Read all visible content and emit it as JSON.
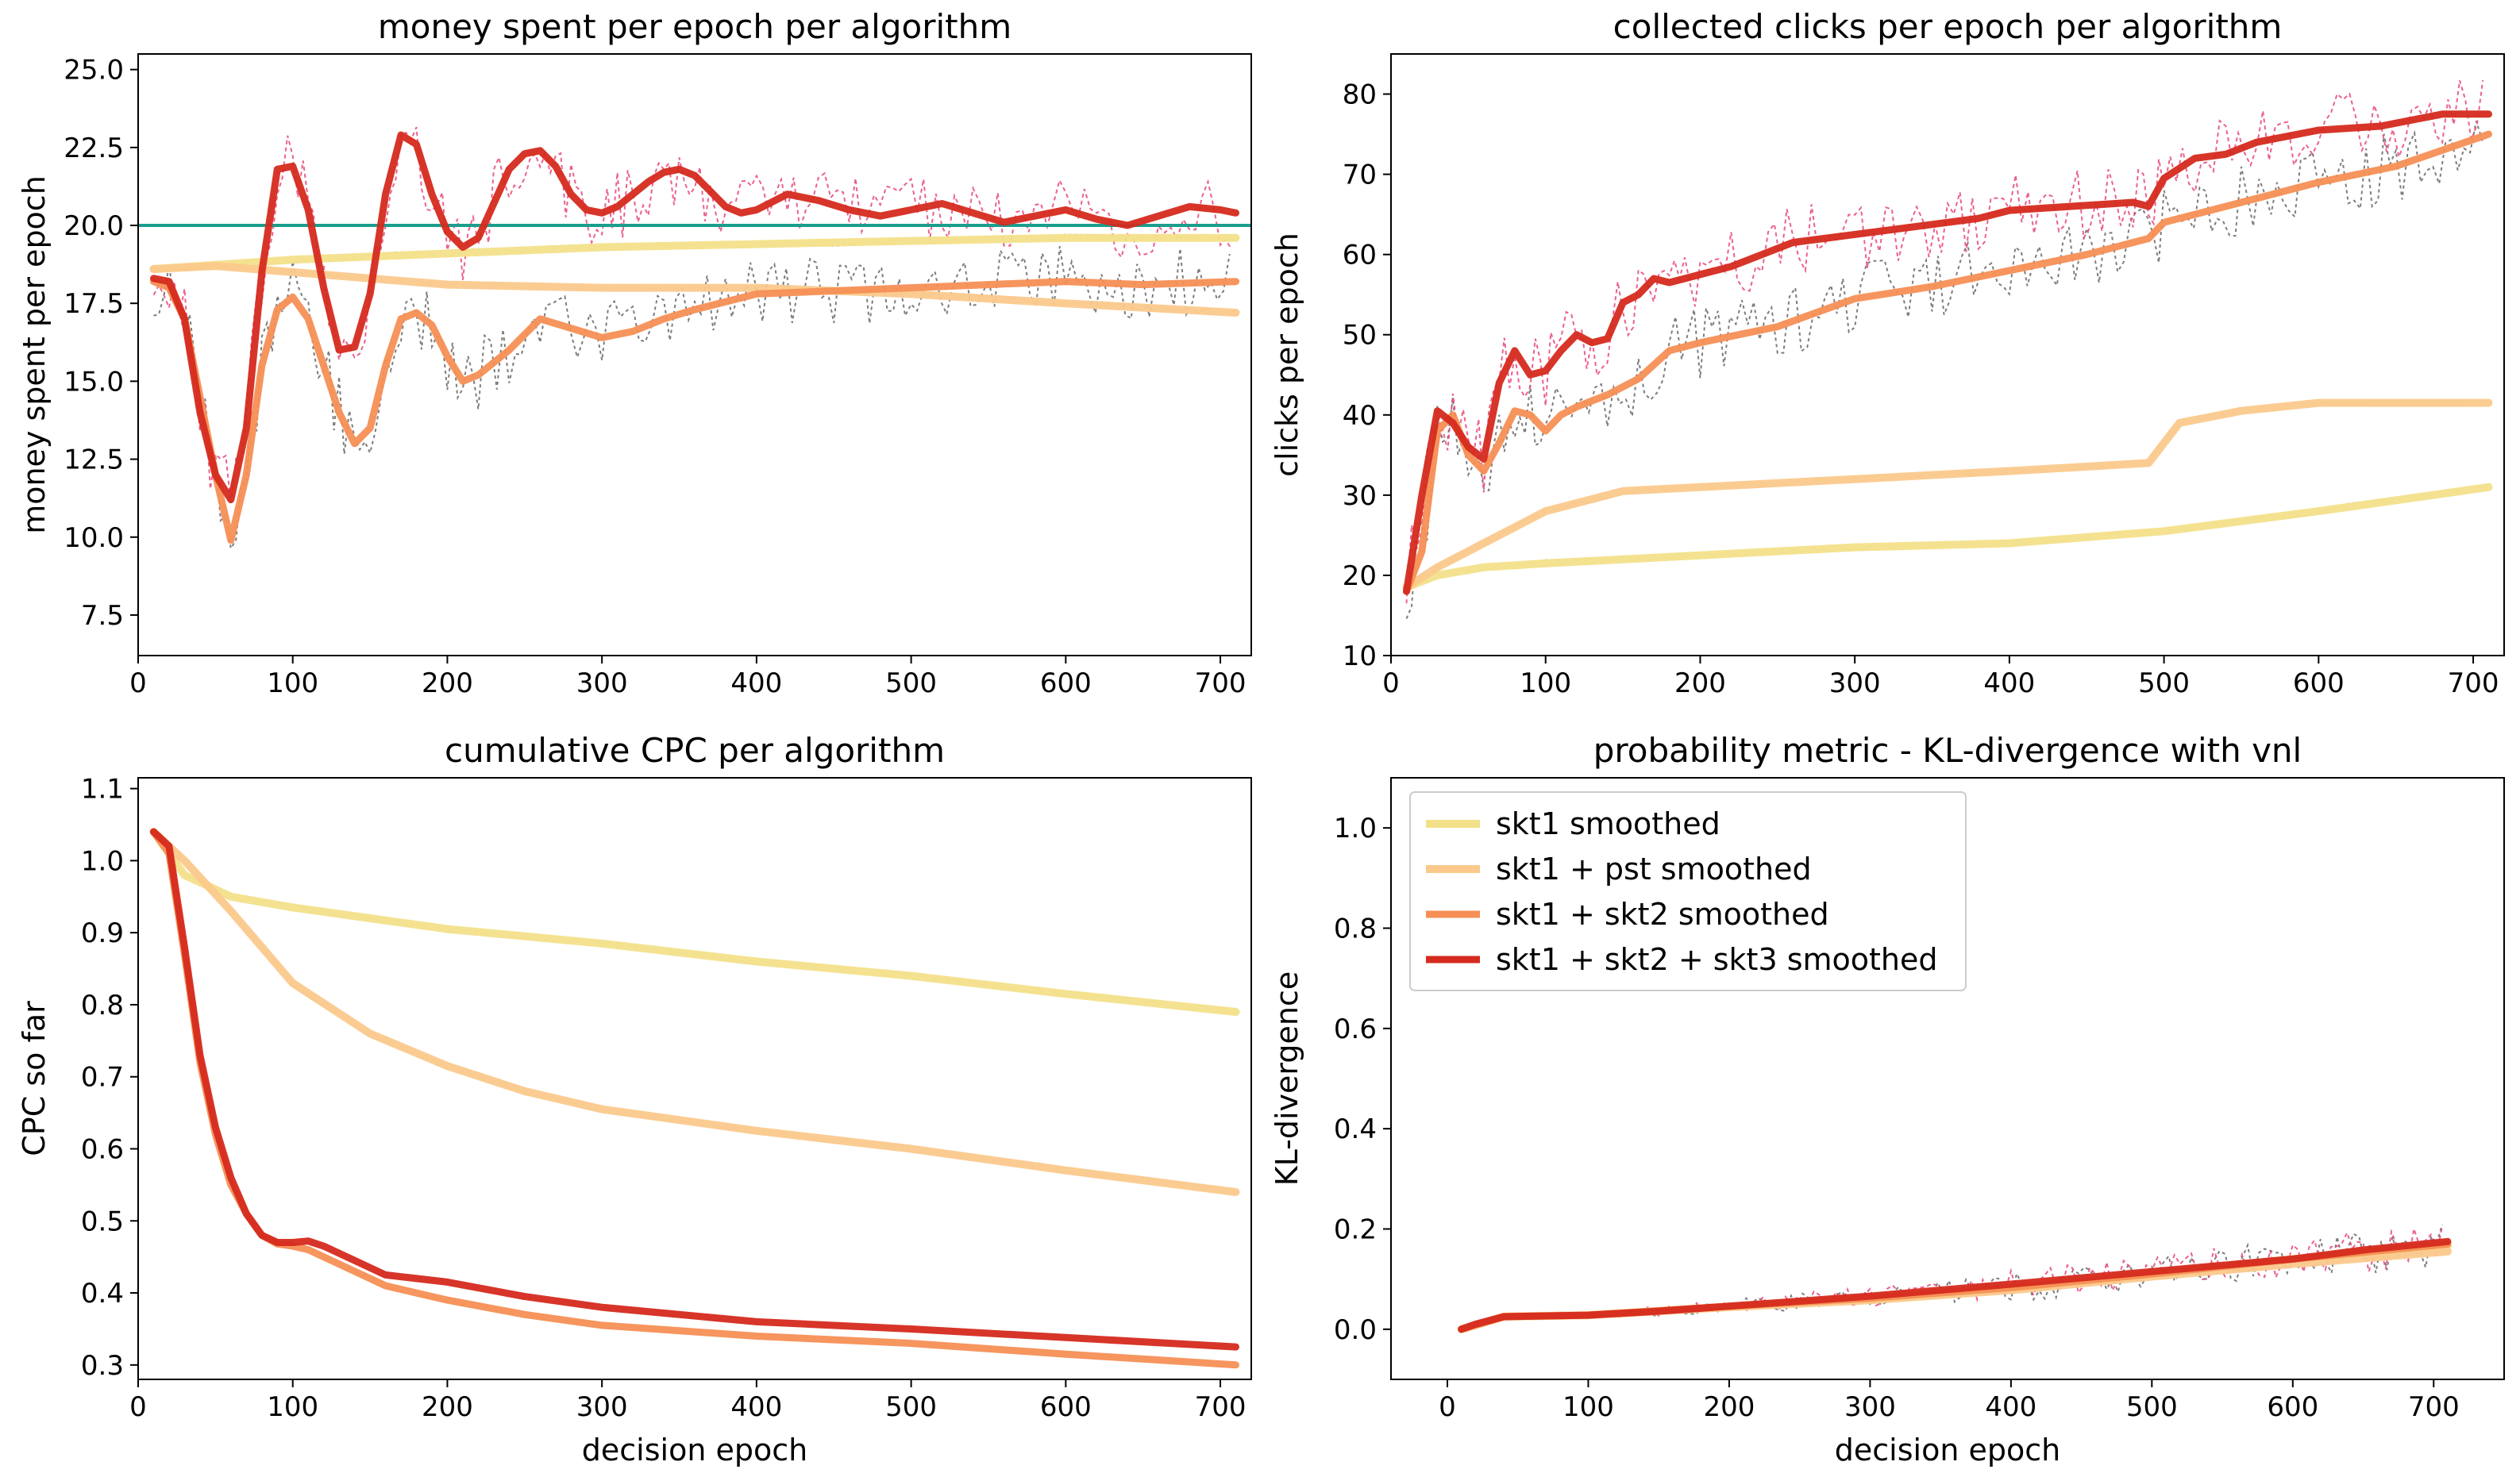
{
  "colors": {
    "skt1": "#f3e08a",
    "skt1_pst": "#fbc98c",
    "skt1_skt2": "#f58f55",
    "skt1_skt2_skt3": "#d52a1e",
    "budget_line": "#1a9e8f",
    "raw_dark": "#666666",
    "raw_pink": "#e8457a"
  },
  "legend": {
    "entries": [
      "skt1 smoothed",
      "skt1 + pst smoothed",
      "skt1 + skt2 smoothed",
      "skt1 + skt2 + skt3 smoothed"
    ]
  },
  "chart_data": [
    {
      "type": "line",
      "title": "money spent per epoch per algorithm",
      "xlabel": "",
      "ylabel": "money spent per epoch",
      "xlim": [
        0,
        720
      ],
      "ylim": [
        6.2,
        25.5
      ],
      "xticks": [
        0,
        100,
        200,
        300,
        400,
        500,
        600,
        700
      ],
      "yticks": [
        7.5,
        10.0,
        12.5,
        15.0,
        17.5,
        20.0,
        22.5,
        25.0
      ],
      "hline": 20,
      "series": [
        {
          "name": "skt1 smoothed",
          "x": [
            10,
            100,
            200,
            300,
            400,
            500,
            600,
            710
          ],
          "y": [
            18.6,
            18.9,
            19.1,
            19.3,
            19.4,
            19.5,
            19.6,
            19.6
          ]
        },
        {
          "name": "skt1 + pst smoothed",
          "x": [
            10,
            50,
            100,
            150,
            200,
            300,
            400,
            500,
            600,
            710
          ],
          "y": [
            18.6,
            18.7,
            18.5,
            18.3,
            18.1,
            18.0,
            18.0,
            17.8,
            17.5,
            17.2
          ]
        },
        {
          "name": "skt1 + skt2 smoothed",
          "x": [
            10,
            20,
            30,
            40,
            50,
            60,
            70,
            80,
            90,
            100,
            110,
            120,
            130,
            140,
            150,
            160,
            170,
            180,
            190,
            200,
            210,
            220,
            240,
            260,
            280,
            300,
            320,
            340,
            360,
            400,
            450,
            500,
            550,
            600,
            650,
            710
          ],
          "y": [
            18.2,
            18.0,
            17.0,
            14.5,
            12.0,
            9.9,
            12.0,
            15.5,
            17.3,
            17.7,
            17.0,
            15.5,
            14.0,
            13.0,
            13.5,
            15.5,
            17.0,
            17.2,
            16.8,
            15.8,
            15.0,
            15.2,
            16.0,
            17.0,
            16.7,
            16.4,
            16.6,
            17.0,
            17.3,
            17.8,
            17.9,
            18.0,
            18.1,
            18.2,
            18.1,
            18.2
          ]
        },
        {
          "name": "skt1 + skt2 + skt3 smoothed",
          "x": [
            10,
            20,
            30,
            40,
            50,
            60,
            70,
            80,
            90,
            100,
            110,
            120,
            130,
            140,
            150,
            160,
            170,
            180,
            190,
            200,
            210,
            220,
            230,
            240,
            250,
            260,
            270,
            280,
            290,
            300,
            310,
            320,
            330,
            340,
            350,
            360,
            370,
            380,
            390,
            400,
            420,
            440,
            460,
            480,
            500,
            520,
            540,
            560,
            580,
            600,
            620,
            640,
            660,
            680,
            700,
            710
          ],
          "y": [
            18.3,
            18.2,
            17.0,
            14.0,
            12.0,
            11.2,
            13.5,
            18.5,
            21.8,
            21.9,
            20.5,
            18.0,
            16.0,
            16.1,
            17.8,
            21.0,
            22.9,
            22.6,
            21.0,
            19.8,
            19.3,
            19.6,
            20.7,
            21.8,
            22.3,
            22.4,
            21.9,
            21.0,
            20.5,
            20.4,
            20.6,
            21.0,
            21.4,
            21.7,
            21.8,
            21.6,
            21.1,
            20.6,
            20.4,
            20.5,
            21.0,
            20.8,
            20.5,
            20.3,
            20.5,
            20.7,
            20.4,
            20.1,
            20.3,
            20.5,
            20.2,
            20.0,
            20.3,
            20.6,
            20.5,
            20.4
          ]
        }
      ]
    },
    {
      "type": "line",
      "title": "collected clicks per epoch per algorithm",
      "xlabel": "",
      "ylabel": "clicks per epoch",
      "xlim": [
        0,
        720
      ],
      "ylim": [
        10,
        85
      ],
      "xticks": [
        0,
        100,
        200,
        300,
        400,
        500,
        600,
        700
      ],
      "yticks": [
        10,
        20,
        30,
        40,
        50,
        60,
        70,
        80
      ],
      "series": [
        {
          "name": "skt1 smoothed",
          "x": [
            10,
            30,
            60,
            100,
            200,
            300,
            400,
            500,
            600,
            710
          ],
          "y": [
            18.5,
            20.0,
            21.0,
            21.5,
            22.5,
            23.5,
            24.0,
            25.5,
            28.0,
            31.0
          ]
        },
        {
          "name": "skt1 + pst smoothed",
          "x": [
            10,
            30,
            60,
            100,
            150,
            200,
            300,
            400,
            490,
            510,
            550,
            600,
            710
          ],
          "y": [
            18.5,
            21.0,
            24.0,
            28.0,
            30.5,
            31.0,
            32.0,
            33.0,
            34.0,
            39.0,
            40.5,
            41.5,
            41.5
          ]
        },
        {
          "name": "skt1 + skt2 smoothed",
          "x": [
            10,
            20,
            30,
            40,
            50,
            60,
            70,
            80,
            90,
            100,
            110,
            120,
            140,
            160,
            180,
            200,
            250,
            300,
            350,
            400,
            450,
            490,
            500,
            550,
            600,
            650,
            710
          ],
          "y": [
            18.0,
            23.0,
            38.0,
            40.0,
            35.0,
            33.0,
            36.5,
            40.5,
            40.0,
            38.0,
            40.0,
            41.0,
            42.5,
            44.5,
            48.0,
            49.0,
            51.0,
            54.5,
            56.0,
            58.0,
            60.0,
            62.0,
            64.0,
            66.5,
            69.0,
            71.0,
            75.0
          ]
        },
        {
          "name": "skt1 + skt2 + skt3 smoothed",
          "x": [
            10,
            20,
            30,
            40,
            50,
            60,
            70,
            80,
            90,
            100,
            110,
            120,
            130,
            140,
            150,
            160,
            170,
            180,
            190,
            200,
            220,
            240,
            260,
            280,
            300,
            340,
            380,
            400,
            440,
            480,
            490,
            500,
            520,
            540,
            560,
            600,
            640,
            680,
            710
          ],
          "y": [
            18.0,
            30.0,
            40.5,
            39.0,
            36.0,
            34.5,
            44.0,
            48.0,
            45.0,
            45.5,
            48.0,
            50.0,
            49.0,
            49.5,
            54.0,
            55.0,
            57.0,
            56.5,
            57.0,
            57.5,
            58.5,
            60.0,
            61.5,
            62.0,
            62.5,
            63.5,
            64.5,
            65.5,
            66.0,
            66.5,
            66.0,
            69.5,
            72.0,
            72.5,
            74.0,
            75.5,
            76.0,
            77.5,
            77.5
          ]
        }
      ]
    },
    {
      "type": "line",
      "title": "cumulative CPC per algorithm",
      "xlabel": "decision epoch",
      "ylabel": "CPC so far",
      "xlim": [
        0,
        720
      ],
      "ylim": [
        0.28,
        1.115
      ],
      "xticks": [
        0,
        100,
        200,
        300,
        400,
        500,
        600,
        700
      ],
      "yticks": [
        0.3,
        0.4,
        0.5,
        0.6,
        0.7,
        0.8,
        0.9,
        1.0,
        1.1
      ],
      "series": [
        {
          "name": "skt1 smoothed",
          "x": [
            10,
            30,
            60,
            100,
            150,
            200,
            300,
            400,
            500,
            600,
            710
          ],
          "y": [
            1.04,
            0.98,
            0.95,
            0.935,
            0.92,
            0.905,
            0.885,
            0.86,
            0.84,
            0.815,
            0.79
          ]
        },
        {
          "name": "skt1 + pst smoothed",
          "x": [
            10,
            30,
            60,
            100,
            150,
            200,
            250,
            300,
            400,
            500,
            600,
            710
          ],
          "y": [
            1.04,
            1.0,
            0.93,
            0.83,
            0.76,
            0.715,
            0.68,
            0.655,
            0.625,
            0.6,
            0.57,
            0.54
          ]
        },
        {
          "name": "skt1 + skt2 smoothed",
          "x": [
            10,
            20,
            30,
            40,
            50,
            60,
            70,
            80,
            90,
            100,
            110,
            120,
            140,
            160,
            180,
            200,
            250,
            300,
            400,
            500,
            600,
            710
          ],
          "y": [
            1.04,
            1.01,
            0.87,
            0.72,
            0.62,
            0.55,
            0.51,
            0.48,
            0.468,
            0.465,
            0.46,
            0.45,
            0.43,
            0.41,
            0.4,
            0.39,
            0.37,
            0.355,
            0.34,
            0.33,
            0.315,
            0.3
          ]
        },
        {
          "name": "skt1 + skt2 + skt3 smoothed",
          "x": [
            10,
            20,
            30,
            40,
            50,
            60,
            70,
            80,
            90,
            100,
            110,
            120,
            140,
            160,
            180,
            200,
            250,
            300,
            400,
            500,
            600,
            710
          ],
          "y": [
            1.04,
            1.02,
            0.88,
            0.73,
            0.63,
            0.56,
            0.51,
            0.48,
            0.47,
            0.47,
            0.472,
            0.465,
            0.445,
            0.425,
            0.42,
            0.415,
            0.395,
            0.38,
            0.36,
            0.35,
            0.338,
            0.325
          ]
        }
      ]
    },
    {
      "type": "line",
      "title": "probability metric - KL-divergence with vnl",
      "xlabel": "decision epoch",
      "ylabel": "KL-divergence",
      "xlim": [
        -40,
        750
      ],
      "ylim": [
        -0.1,
        1.1
      ],
      "xticks": [
        0,
        100,
        200,
        300,
        400,
        500,
        600,
        700
      ],
      "yticks": [
        0.0,
        0.2,
        0.4,
        0.6,
        0.8,
        1.0
      ],
      "legend": "upper left",
      "series": [
        {
          "name": "skt1 smoothed",
          "x": [
            10,
            40,
            100,
            200,
            300,
            400,
            500,
            600,
            710
          ],
          "y": [
            0.0,
            0.025,
            0.028,
            0.045,
            0.06,
            0.08,
            0.11,
            0.14,
            0.165
          ]
        },
        {
          "name": "skt1 + pst smoothed",
          "x": [
            10,
            40,
            100,
            200,
            300,
            400,
            500,
            600,
            710
          ],
          "y": [
            0.0,
            0.025,
            0.028,
            0.044,
            0.058,
            0.078,
            0.105,
            0.13,
            0.155
          ]
        },
        {
          "name": "skt1 + skt2 smoothed",
          "x": [
            10,
            40,
            100,
            200,
            300,
            400,
            500,
            600,
            710
          ],
          "y": [
            0.0,
            0.025,
            0.028,
            0.046,
            0.062,
            0.083,
            0.11,
            0.14,
            0.17
          ]
        },
        {
          "name": "skt1 + skt2 + skt3 smoothed",
          "x": [
            10,
            20,
            40,
            100,
            150,
            200,
            300,
            400,
            500,
            600,
            650,
            710
          ],
          "y": [
            0.0,
            0.01,
            0.025,
            0.028,
            0.036,
            0.046,
            0.066,
            0.09,
            0.115,
            0.14,
            0.158,
            0.175
          ]
        }
      ]
    }
  ]
}
